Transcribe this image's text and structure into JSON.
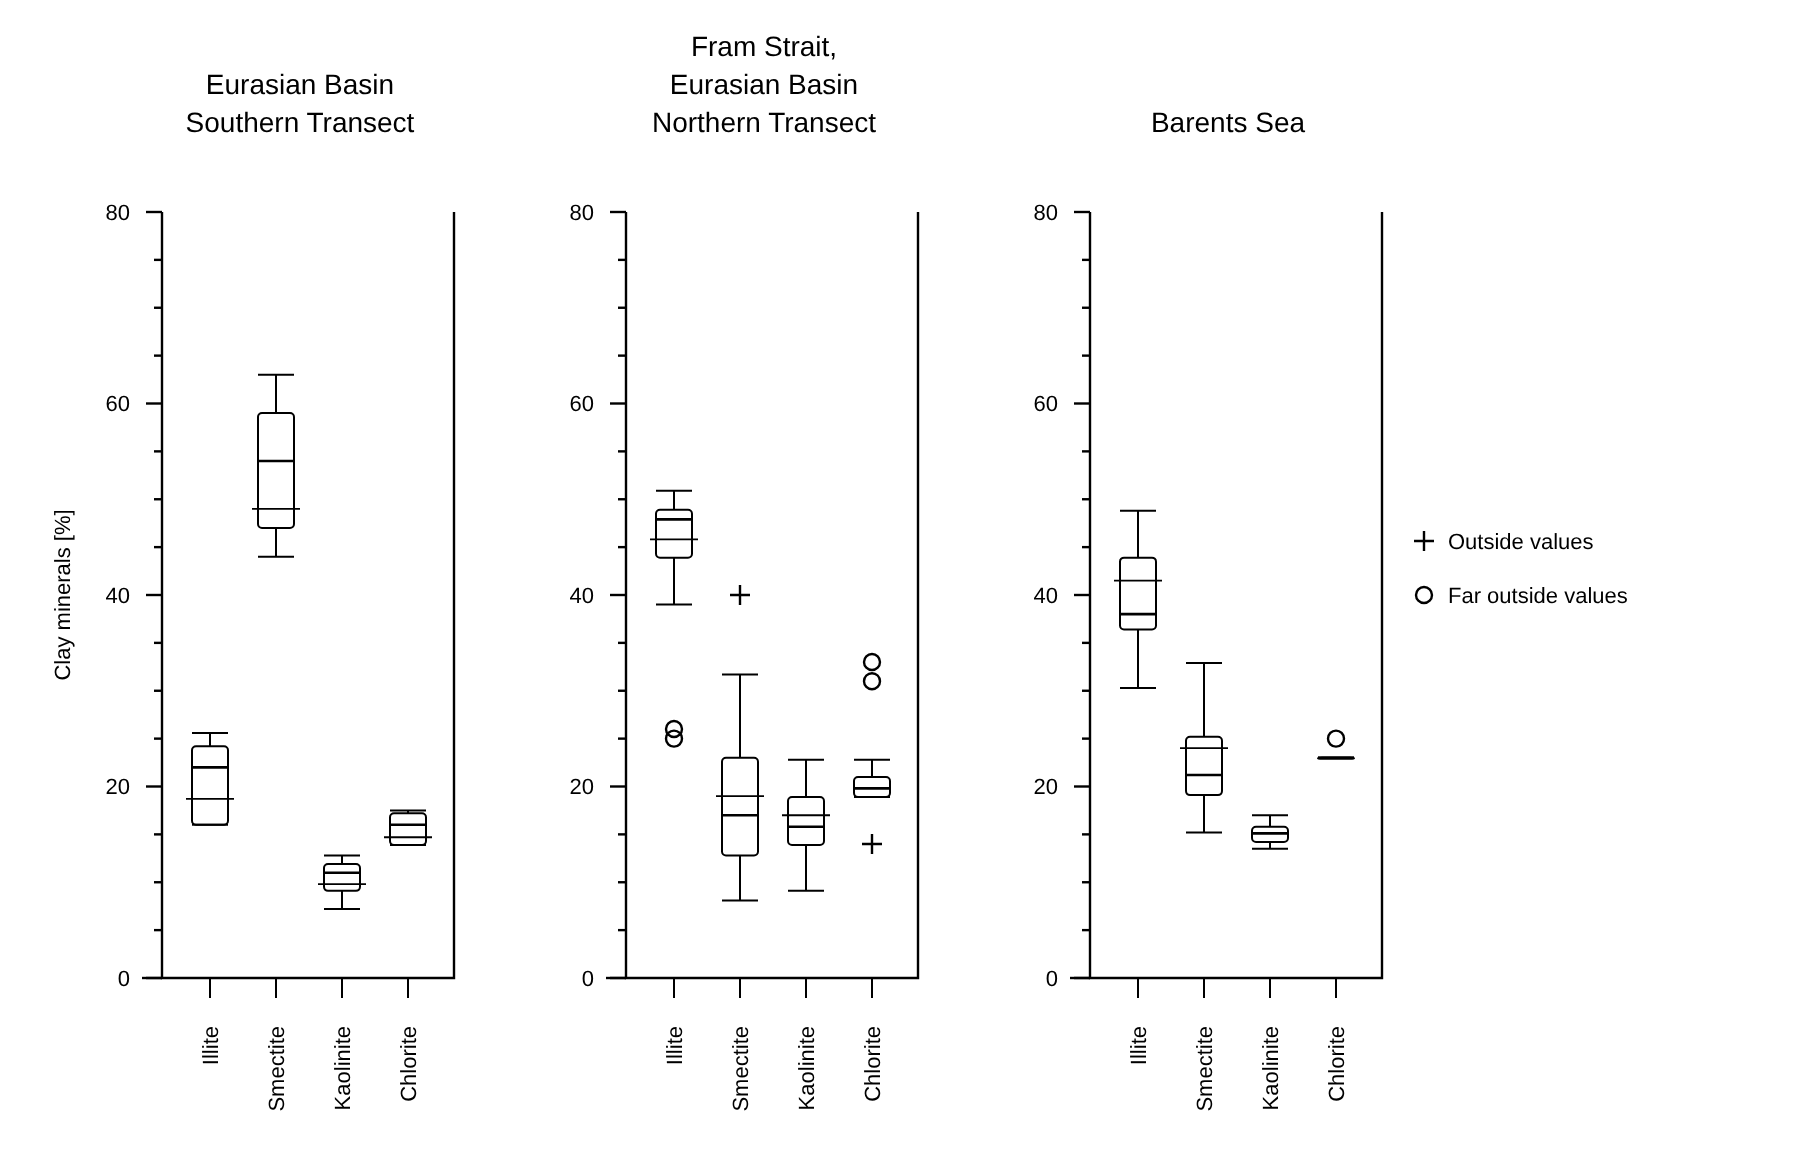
{
  "chart_data": [
    {
      "type": "box",
      "title": "Eurasian Basin\nSouthern Transect",
      "ylabel": "Clay minerals [%]",
      "categories": [
        "Illite",
        "Smectite",
        "Kaolinite",
        "Chlorite"
      ],
      "ylim": [
        0,
        80
      ],
      "yticks": [
        0,
        {
          "value": 5,
          "label": null
        },
        {
          "value": 10,
          "label": null
        },
        {
          "value": 15,
          "label": null
        },
        20,
        {
          "value": 25,
          "label": null
        },
        {
          "value": 30,
          "label": null
        },
        {
          "value": 35,
          "label": null
        },
        40,
        {
          "value": 45,
          "label": null
        },
        {
          "value": 50,
          "label": null
        },
        {
          "value": 55,
          "label": null
        },
        60,
        {
          "value": 65,
          "label": null
        },
        {
          "value": 70,
          "label": null
        },
        {
          "value": 75,
          "label": null
        },
        80
      ],
      "boxes": [
        {
          "low": 16,
          "q1": 16,
          "median": 22,
          "q3": 24.2,
          "high": 25.6,
          "mean": 18.7
        },
        {
          "low": 44,
          "q1": 47,
          "median": 54,
          "q3": 59,
          "high": 63,
          "mean": 49
        },
        {
          "low": 7.2,
          "q1": 9.1,
          "median": 11,
          "q3": 11.9,
          "high": 12.8,
          "mean": 9.8
        },
        {
          "low": 13.9,
          "q1": 13.9,
          "median": 16,
          "q3": 17.2,
          "high": 17.5,
          "mean": 14.7
        }
      ]
    },
    {
      "type": "box",
      "title": "Fram Strait,\nEurasian Basin\nNorthern Transect",
      "categories": [
        "Illite",
        "Smectite",
        "Kaolinite",
        "Chlorite"
      ],
      "ylim": [
        0,
        80
      ],
      "yticks": [
        0,
        {
          "value": 5,
          "label": null
        },
        {
          "value": 10,
          "label": null
        },
        {
          "value": 15,
          "label": null
        },
        20,
        {
          "value": 25,
          "label": null
        },
        {
          "value": 30,
          "label": null
        },
        {
          "value": 35,
          "label": null
        },
        40,
        {
          "value": 45,
          "label": null
        },
        {
          "value": 50,
          "label": null
        },
        {
          "value": 55,
          "label": null
        },
        60,
        {
          "value": 65,
          "label": null
        },
        {
          "value": 70,
          "label": null
        },
        {
          "value": 75,
          "label": null
        },
        80
      ],
      "boxes": [
        {
          "low": 39,
          "q1": 43.9,
          "median": 47.9,
          "q3": 48.9,
          "high": 50.9,
          "mean": 45.8
        },
        {
          "low": 8.1,
          "q1": 12.8,
          "median": 17,
          "q3": 23,
          "high": 31.7,
          "mean": 19
        },
        {
          "low": 9.1,
          "q1": 13.9,
          "median": 15.8,
          "q3": 18.9,
          "high": 22.8,
          "mean": 17
        },
        {
          "low": 18.9,
          "q1": 18.9,
          "median": 19.8,
          "q3": 21,
          "high": 22.8
        }
      ],
      "series": [
        {
          "type": "scatter",
          "marker": "cross",
          "color": "#000000",
          "x": [
            "Smectite",
            "Chlorite"
          ],
          "values": [
            40,
            14
          ]
        },
        {
          "type": "scatter",
          "marker": "circle",
          "color": "#000000",
          "x": [
            "Illite",
            "Illite",
            "Chlorite",
            "Chlorite"
          ],
          "values": [
            26,
            25,
            33,
            31
          ]
        }
      ]
    },
    {
      "type": "box",
      "title": "Barents Sea",
      "categories": [
        "Illite",
        "Smectite",
        "Kaolinite",
        "Chlorite"
      ],
      "ylim": [
        0,
        80
      ],
      "yticks": [
        0,
        {
          "value": 5,
          "label": null
        },
        {
          "value": 10,
          "label": null
        },
        {
          "value": 15,
          "label": null
        },
        20,
        {
          "value": 25,
          "label": null
        },
        {
          "value": 30,
          "label": null
        },
        {
          "value": 35,
          "label": null
        },
        40,
        {
          "value": 45,
          "label": null
        },
        {
          "value": 50,
          "label": null
        },
        {
          "value": 55,
          "label": null
        },
        60,
        {
          "value": 65,
          "label": null
        },
        {
          "value": 70,
          "label": null
        },
        {
          "value": 75,
          "label": null
        },
        80
      ],
      "boxes": [
        {
          "low": 30.3,
          "q1": 36.4,
          "median": 38,
          "q3": 43.9,
          "high": 48.8,
          "mean": 41.5
        },
        {
          "low": 15.2,
          "q1": 19.1,
          "median": 21.2,
          "q3": 25.2,
          "high": 32.9,
          "mean": 24
        },
        {
          "low": 13.5,
          "q1": 14.2,
          "median": 15.1,
          "q3": 15.8,
          "high": 17
        },
        {
          "low": 23,
          "q1": 23,
          "median": 23,
          "q3": 23,
          "high": 23
        }
      ],
      "series": [
        {
          "name": "Outside values",
          "type": "scatter",
          "marker": "cross",
          "color": "#000000",
          "values": [
            null,
            null,
            null,
            null
          ]
        },
        {
          "name": "Far outside values",
          "type": "scatter",
          "marker": "circle",
          "color": "#000000",
          "x": [
            "Chlorite"
          ],
          "values": [
            25
          ]
        }
      ],
      "legend": "right"
    }
  ]
}
